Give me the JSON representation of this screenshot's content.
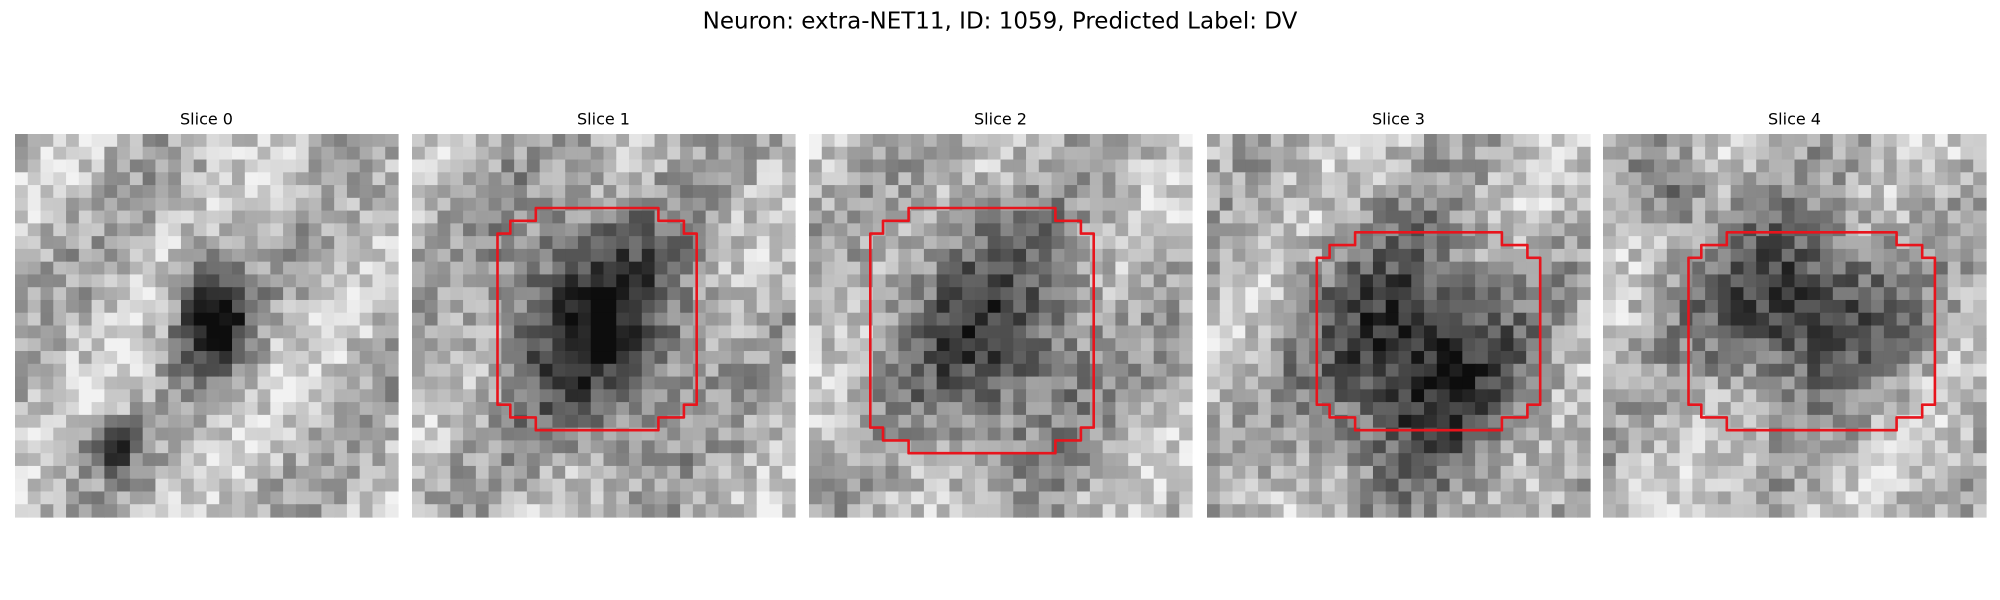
{
  "title": "Neuron: extra-NET11, ID: 1059, Predicted Label: DV",
  "panels": [
    {
      "title": "Slice 0"
    },
    {
      "title": "Slice 1"
    },
    {
      "title": "Slice 2"
    },
    {
      "title": "Slice 3"
    },
    {
      "title": "Slice 4"
    }
  ]
}
